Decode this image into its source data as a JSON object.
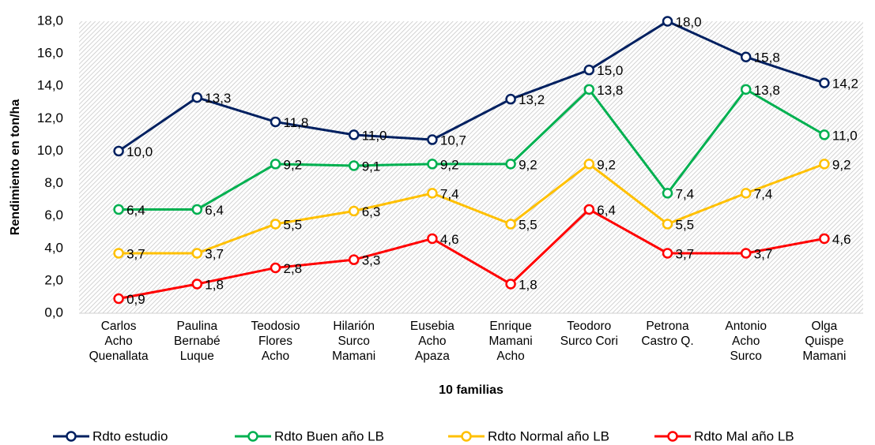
{
  "chart_data": {
    "type": "line",
    "x_label": "10  familias",
    "y_label": "Rendimiento en ton/ha",
    "categories": [
      "Carlos\nAcho\nQuenallata",
      "Paulina\nBernabé\nLuque",
      "Teodosio\nFlores\nAcho",
      "Hilarión\nSurco\nMamani",
      "Eusebia\nAcho\nApaza",
      "Enrique\nMamani\nAcho",
      "Teodoro\nSurco Cori",
      "Petrona\nCastro Q.",
      "Antonio\nAcho\nSurco",
      "Olga\nQuispe\nMamani"
    ],
    "ylim": [
      0,
      18
    ],
    "yticks": [
      {
        "value": 0,
        "label": "0,0"
      },
      {
        "value": 2,
        "label": "2,0"
      },
      {
        "value": 4,
        "label": "4,0"
      },
      {
        "value": 6,
        "label": "6,0"
      },
      {
        "value": 8,
        "label": "8,0"
      },
      {
        "value": 10,
        "label": "10,0"
      },
      {
        "value": 12,
        "label": "12,0"
      },
      {
        "value": 14,
        "label": "14,0"
      },
      {
        "value": 16,
        "label": "16,0"
      },
      {
        "value": 18,
        "label": "18,0"
      }
    ],
    "legend": "bottom",
    "series": [
      {
        "name": "Rdto estudio",
        "color": "#002060",
        "values": [
          10.0,
          13.3,
          11.8,
          11.0,
          10.7,
          13.2,
          15.0,
          18.0,
          15.8,
          14.2
        ],
        "value_labels": [
          "10,0",
          "13,3",
          "11,8",
          "11,0",
          "10,7",
          "13,2",
          "15,0",
          "18,0",
          "15,8",
          "14,2"
        ]
      },
      {
        "name": "Rdto Buen año LB",
        "color": "#00b050",
        "values": [
          6.4,
          6.4,
          9.2,
          9.1,
          9.2,
          9.2,
          13.8,
          7.4,
          13.8,
          11.0
        ],
        "value_labels": [
          "6,4",
          "6,4",
          "9,2",
          "9,1",
          "9,2",
          "9,2",
          "13,8",
          "7,4",
          "13,8",
          "11,0"
        ]
      },
      {
        "name": "Rdto Normal año LB",
        "color": "#ffc000",
        "values": [
          3.7,
          3.7,
          5.5,
          6.3,
          7.4,
          5.5,
          9.2,
          5.5,
          7.4,
          9.2
        ],
        "value_labels": [
          "3,7",
          "3,7",
          "5,5",
          "6,3",
          "7,4",
          "5,5",
          "9,2",
          "5,5",
          "7,4",
          "9,2"
        ]
      },
      {
        "name": "Rdto Mal año LB",
        "color": "#ff0000",
        "values": [
          0.9,
          1.8,
          2.8,
          3.3,
          4.6,
          1.8,
          6.4,
          3.7,
          3.7,
          4.6
        ],
        "value_labels": [
          "0,9",
          "1,8",
          "2,8",
          "3,3",
          "4,6",
          "1,8",
          "6,4",
          "3,7",
          "3,7",
          "4,6"
        ]
      }
    ]
  }
}
